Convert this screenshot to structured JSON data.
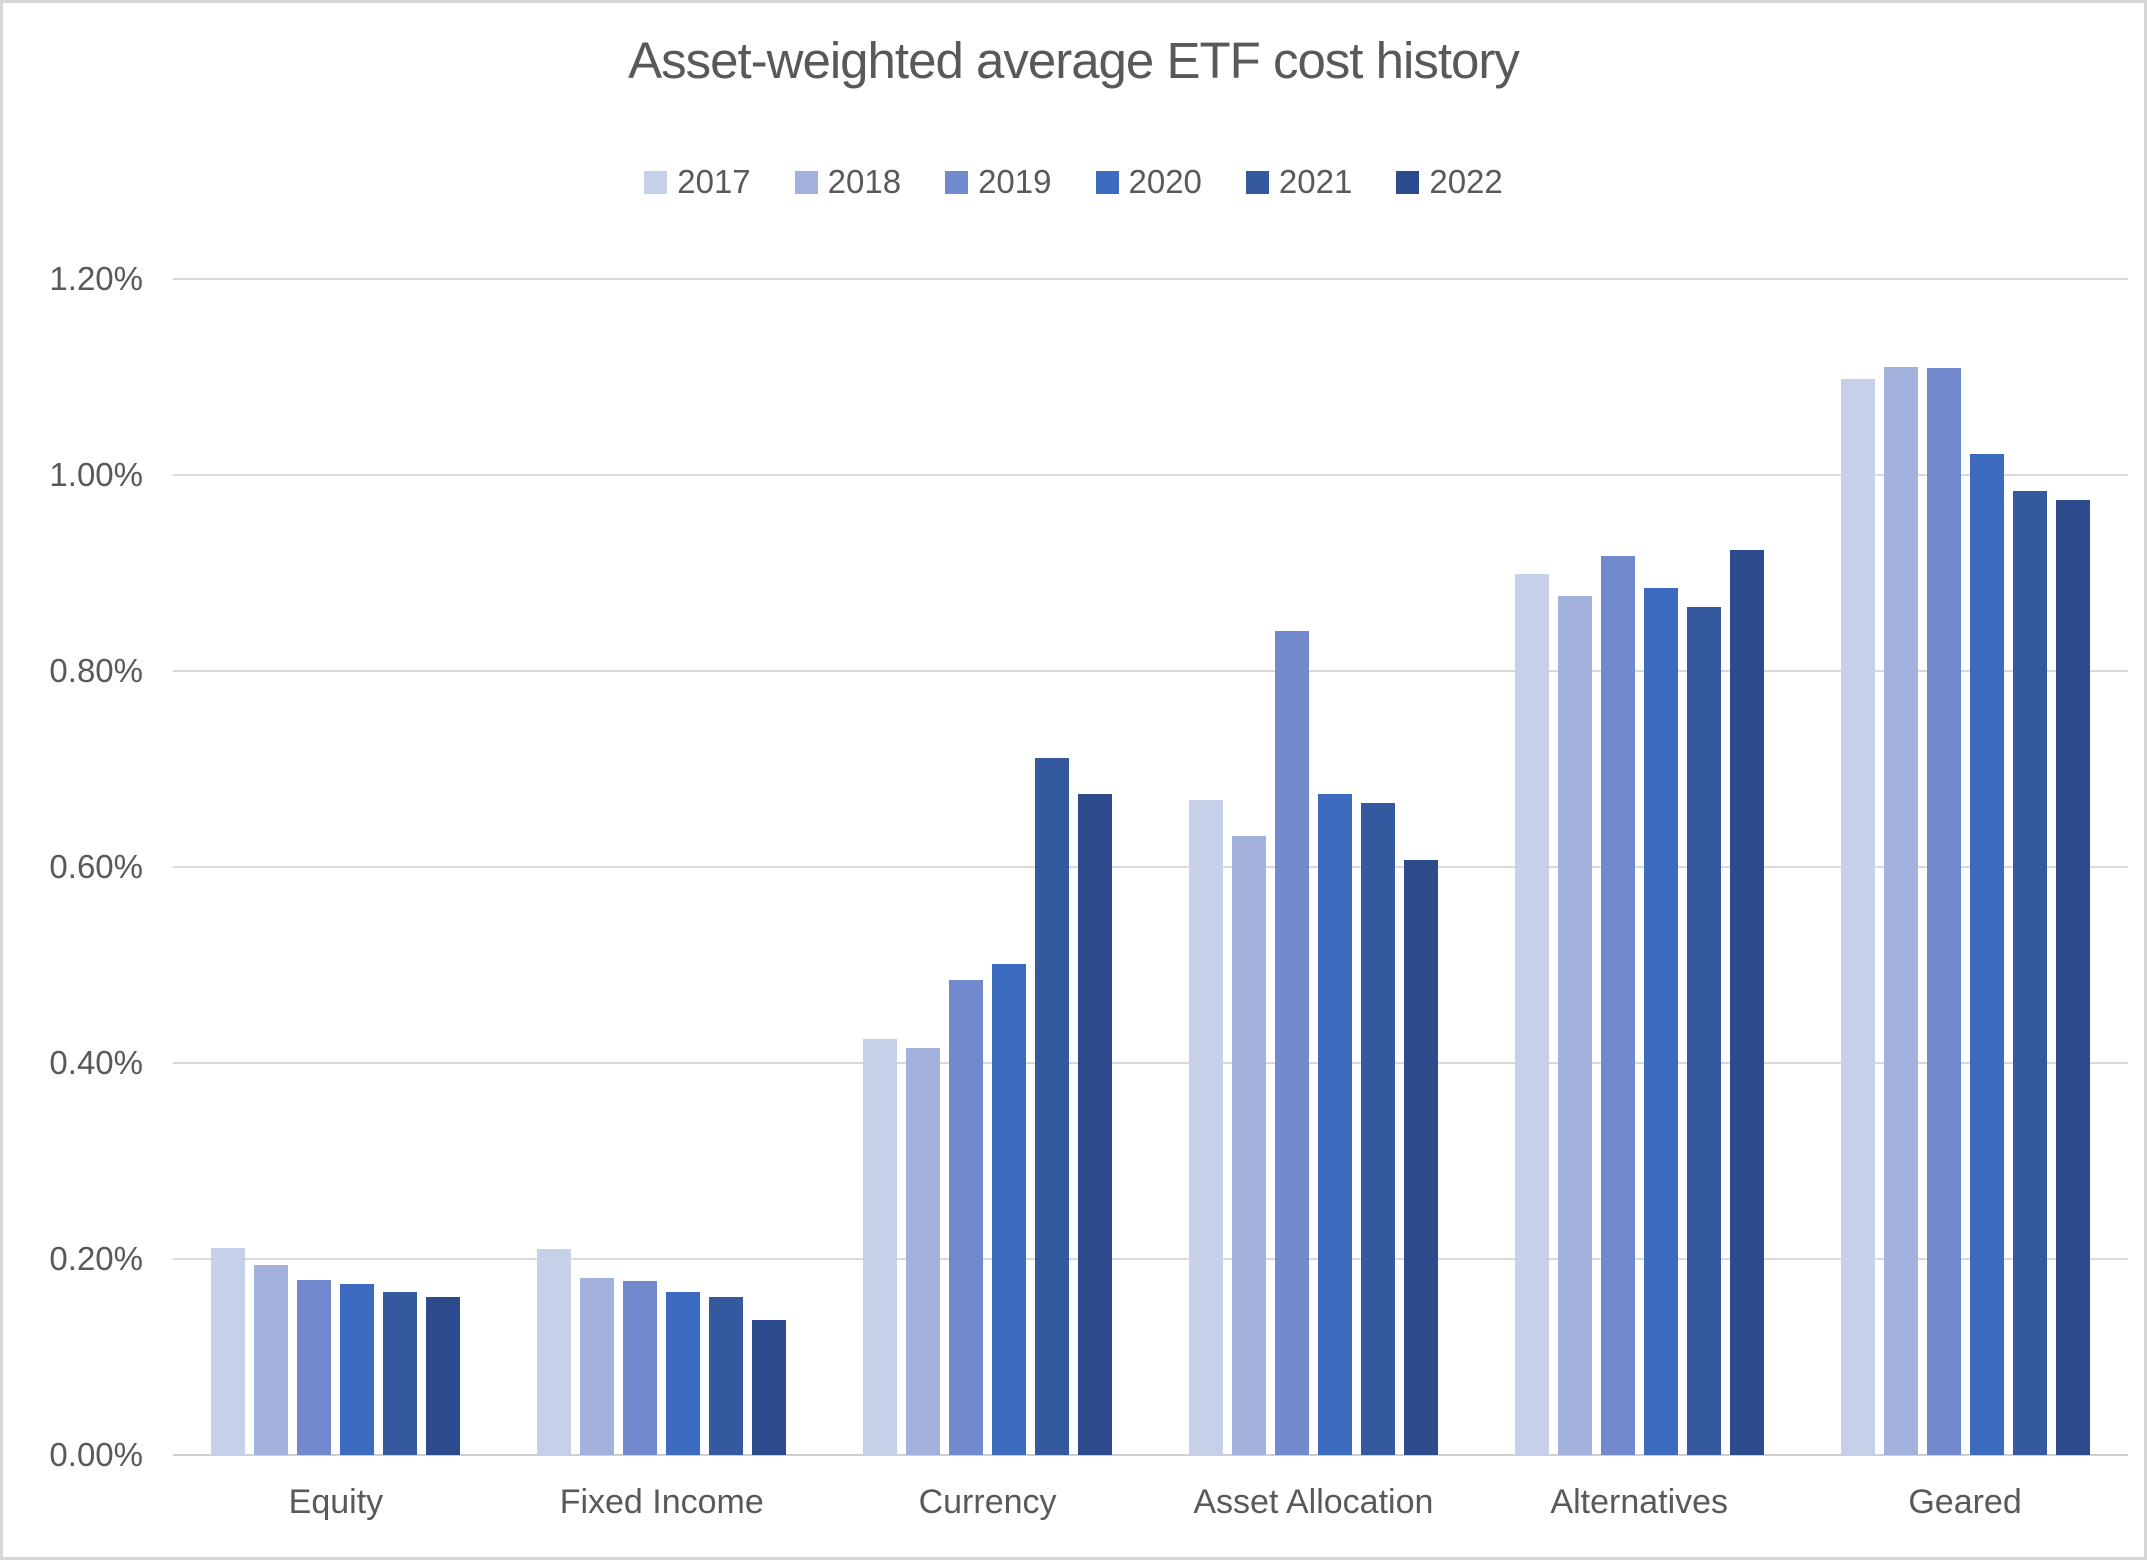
{
  "title": "Asset-weighted average ETF cost history",
  "colors": {
    "text": "#595959",
    "gridline": "#dadada",
    "axis_line": "#cfcfcf",
    "canvas_border": "#d6d6d6",
    "background": "#ffffff"
  },
  "legend": {
    "position": "top",
    "items": [
      {
        "label": "2017",
        "color": "#c7d0e9"
      },
      {
        "label": "2018",
        "color": "#a3b2dc"
      },
      {
        "label": "2019",
        "color": "#7289ce"
      },
      {
        "label": "2020",
        "color": "#3d6bc0"
      },
      {
        "label": "2021",
        "color": "#34599e"
      },
      {
        "label": "2022",
        "color": "#2c4b8c"
      }
    ]
  },
  "y_axis": {
    "tick_labels": [
      "1.20%",
      "1.00%",
      "0.80%",
      "0.60%",
      "0.40%",
      "0.20%",
      "0.00%"
    ],
    "min": 0,
    "max": 1.2,
    "step": 0.2,
    "unit": "%"
  },
  "chart_data": {
    "type": "bar",
    "title": "Asset-weighted average ETF cost history",
    "categories": [
      "Equity",
      "Fixed Income",
      "Currency",
      "Asset Allocation",
      "Alternatives",
      "Geared"
    ],
    "series": [
      {
        "name": "2017",
        "color": "#c7d0e9",
        "values": [
          0.211,
          0.21,
          0.424,
          0.668,
          0.899,
          1.098
        ]
      },
      {
        "name": "2018",
        "color": "#a3b2dc",
        "values": [
          0.194,
          0.181,
          0.415,
          0.632,
          0.877,
          1.11
        ]
      },
      {
        "name": "2019",
        "color": "#7289ce",
        "values": [
          0.179,
          0.178,
          0.485,
          0.841,
          0.917,
          1.109
        ]
      },
      {
        "name": "2020",
        "color": "#3d6bc0",
        "values": [
          0.174,
          0.166,
          0.501,
          0.674,
          0.885,
          1.021
        ]
      },
      {
        "name": "2021",
        "color": "#34599e",
        "values": [
          0.166,
          0.161,
          0.711,
          0.665,
          0.865,
          0.984
        ]
      },
      {
        "name": "2022",
        "color": "#2c4b8c",
        "values": [
          0.161,
          0.138,
          0.675,
          0.607,
          0.923,
          0.974
        ]
      }
    ],
    "xlabel": "",
    "ylabel": "",
    "ylim": [
      0,
      1.2
    ],
    "grid": true,
    "legend_position": "top",
    "value_unit": "%"
  }
}
